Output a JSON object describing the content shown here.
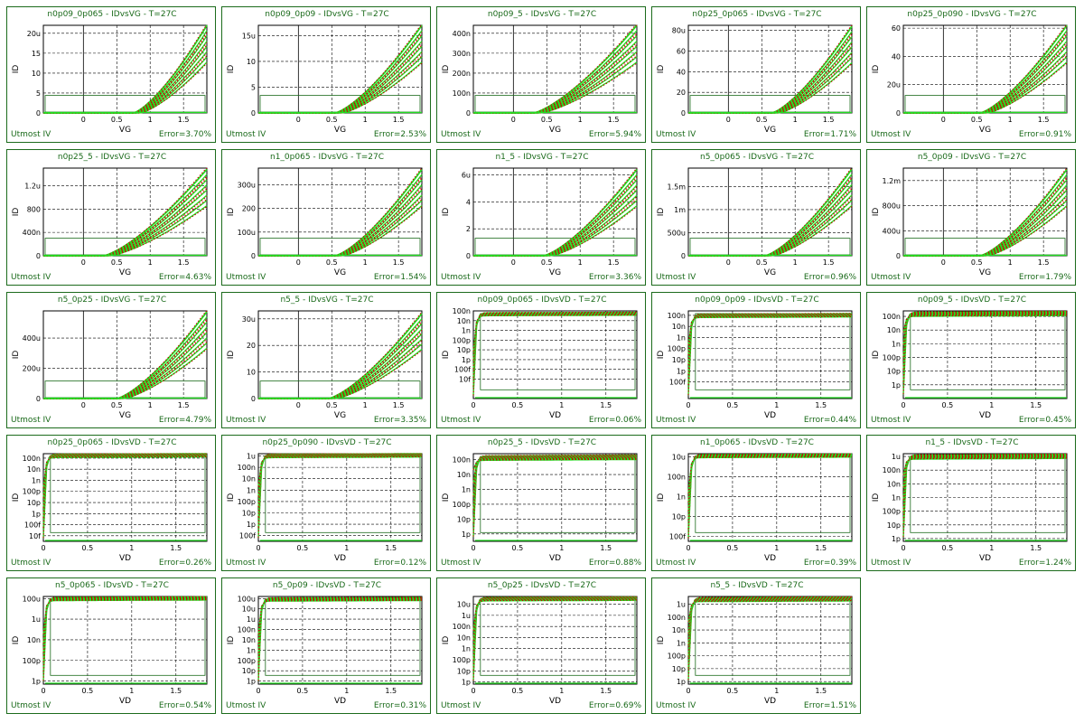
{
  "footer_label": "Utmost IV",
  "axes": {
    "vg_label": "VG",
    "vd_label": "VD",
    "id_label": "ID"
  },
  "colors": {
    "border": "#1c6b1c",
    "measured": "#22dd22",
    "simulated": "#cc0000",
    "title": "#1a6a1a"
  },
  "chart_data": [
    {
      "type": "line",
      "title": "n0p09_0p065 - IDvsVG - T=27C",
      "error": "Error=3.70%",
      "sweep": "VG",
      "xlim": [
        -0.6,
        1.85
      ],
      "ylim": [
        0,
        22
      ],
      "xticks": [
        "0",
        "0.5",
        "1",
        "1.5"
      ],
      "xtick_values": [
        0,
        0.5,
        1,
        1.5
      ],
      "yticks": [
        "0",
        "5",
        "10",
        "15",
        "20u"
      ],
      "ytick_values": [
        0,
        5,
        10,
        15,
        20
      ],
      "vth": 0.75,
      "ymax": 22,
      "curves": 8
    },
    {
      "type": "line",
      "title": "n0p09_0p09 - IDvsVG - T=27C",
      "error": "Error=2.53%",
      "sweep": "VG",
      "xlim": [
        -0.6,
        1.85
      ],
      "ylim": [
        0,
        17
      ],
      "xticks": [
        "0",
        "0.5",
        "1",
        "1.5"
      ],
      "xtick_values": [
        0,
        0.5,
        1,
        1.5
      ],
      "yticks": [
        "0",
        "5",
        "10",
        "15u"
      ],
      "ytick_values": [
        0,
        5,
        10,
        15
      ],
      "vth": 0.55,
      "ymax": 17,
      "curves": 8
    },
    {
      "type": "line",
      "title": "n0p09_5 - IDvsVG - T=27C",
      "error": "Error=5.94%",
      "sweep": "VG",
      "xlim": [
        -0.6,
        1.85
      ],
      "ylim": [
        0,
        440
      ],
      "xticks": [
        "0",
        "0.5",
        "1",
        "1.5"
      ],
      "xtick_values": [
        0,
        0.5,
        1,
        1.5
      ],
      "yticks": [
        "0",
        "100n",
        "200n",
        "300n",
        "400n"
      ],
      "ytick_values": [
        0,
        100,
        200,
        300,
        400
      ],
      "vth": 0.3,
      "ymax": 440,
      "curves": 8
    },
    {
      "type": "line",
      "title": "n0p25_0p065 - IDvsVG - T=27C",
      "error": "Error=1.71%",
      "sweep": "VG",
      "xlim": [
        -0.6,
        1.85
      ],
      "ylim": [
        0,
        85
      ],
      "xticks": [
        "0",
        "0.5",
        "1",
        "1.5"
      ],
      "xtick_values": [
        0,
        0.5,
        1,
        1.5
      ],
      "yticks": [
        "0",
        "20",
        "40",
        "60",
        "80u"
      ],
      "ytick_values": [
        0,
        20,
        40,
        60,
        80
      ],
      "vth": 0.65,
      "ymax": 84,
      "curves": 8
    },
    {
      "type": "line",
      "title": "n0p25_0p090 - IDvsVG - T=27C",
      "error": "Error=0.91%",
      "sweep": "VG",
      "xlim": [
        -0.6,
        1.85
      ],
      "ylim": [
        0,
        62
      ],
      "xticks": [
        "0",
        "0.5",
        "1",
        "1.5"
      ],
      "xtick_values": [
        0,
        0.5,
        1,
        1.5
      ],
      "yticks": [
        "0",
        "20u",
        "40",
        "60"
      ],
      "ytick_values": [
        0,
        20,
        40,
        60
      ],
      "vth": 0.55,
      "ymax": 62,
      "curves": 8
    },
    {
      "type": "line",
      "title": "n0p25_5 - IDvsVG - T=27C",
      "error": "Error=4.63%",
      "sweep": "VG",
      "xlim": [
        -0.6,
        1.85
      ],
      "ylim": [
        0,
        1500
      ],
      "xticks": [
        "0",
        "0.5",
        "1",
        "1.5"
      ],
      "xtick_values": [
        0,
        0.5,
        1,
        1.5
      ],
      "yticks": [
        "0",
        "400n",
        "800",
        "1.2u"
      ],
      "ytick_values": [
        0,
        400,
        800,
        1200
      ],
      "vth": 0.3,
      "ymax": 1480,
      "curves": 8
    },
    {
      "type": "line",
      "title": "n1_0p065 - IDvsVG - T=27C",
      "error": "Error=1.54%",
      "sweep": "VG",
      "xlim": [
        -0.6,
        1.85
      ],
      "ylim": [
        0,
        370
      ],
      "xticks": [
        "0",
        "0.5",
        "1",
        "1.5"
      ],
      "xtick_values": [
        0,
        0.5,
        1,
        1.5
      ],
      "yticks": [
        "0",
        "100u",
        "200",
        "300u"
      ],
      "ytick_values": [
        0,
        100,
        200,
        300
      ],
      "vth": 0.55,
      "ymax": 365,
      "curves": 8
    },
    {
      "type": "line",
      "title": "n1_5 - IDvsVG - T=27C",
      "error": "Error=3.36%",
      "sweep": "VG",
      "xlim": [
        -0.6,
        1.85
      ],
      "ylim": [
        0,
        6.5
      ],
      "xticks": [
        "0",
        "0.5",
        "1",
        "1.5"
      ],
      "xtick_values": [
        0,
        0.5,
        1,
        1.5
      ],
      "yticks": [
        "0",
        "2",
        "4",
        "6u"
      ],
      "ytick_values": [
        0,
        2,
        4,
        6
      ],
      "vth": 0.45,
      "ymax": 6.4,
      "curves": 8
    },
    {
      "type": "line",
      "title": "n5_0p065 - IDvsVG - T=27C",
      "error": "Error=0.96%",
      "sweep": "VG",
      "xlim": [
        -0.6,
        1.85
      ],
      "ylim": [
        0,
        1900
      ],
      "xticks": [
        "0",
        "0.5",
        "1",
        "1.5"
      ],
      "xtick_values": [
        0,
        0.5,
        1,
        1.5
      ],
      "yticks": [
        "0",
        "500u",
        "1m",
        "1.5m"
      ],
      "ytick_values": [
        0,
        500,
        1000,
        1500
      ],
      "vth": 0.55,
      "ymax": 1880,
      "curves": 8
    },
    {
      "type": "line",
      "title": "n5_0p09 - IDvsVG - T=27C",
      "error": "Error=1.79%",
      "sweep": "VG",
      "xlim": [
        -0.6,
        1.85
      ],
      "ylim": [
        0,
        1400
      ],
      "xticks": [
        "0",
        "0.5",
        "1",
        "1.5"
      ],
      "xtick_values": [
        0,
        0.5,
        1,
        1.5
      ],
      "yticks": [
        "0",
        "400u",
        "800u",
        "1.2m"
      ],
      "ytick_values": [
        0,
        400,
        800,
        1200
      ],
      "vth": 0.55,
      "ymax": 1380,
      "curves": 8
    },
    {
      "type": "line",
      "title": "n5_0p25 - IDvsVG - T=27C",
      "error": "Error=4.79%",
      "sweep": "VG",
      "xlim": [
        -0.6,
        1.85
      ],
      "ylim": [
        0,
        580
      ],
      "xticks": [
        "0",
        "0.5",
        "1",
        "1.5"
      ],
      "xtick_values": [
        0,
        0.5,
        1,
        1.5
      ],
      "yticks": [
        "0",
        "200u",
        "400u"
      ],
      "ytick_values": [
        0,
        200,
        400
      ],
      "vth": 0.5,
      "ymax": 575,
      "curves": 8
    },
    {
      "type": "line",
      "title": "n5_5 - IDvsVG - T=27C",
      "error": "Error=3.35%",
      "sweep": "VG",
      "xlim": [
        -0.6,
        1.85
      ],
      "ylim": [
        0,
        33
      ],
      "xticks": [
        "0",
        "0.5",
        "1",
        "1.5"
      ],
      "xtick_values": [
        0,
        0.5,
        1,
        1.5
      ],
      "yticks": [
        "0",
        "10",
        "20",
        "30u"
      ],
      "ytick_values": [
        0,
        10,
        20,
        30
      ],
      "vth": 0.45,
      "ymax": 32,
      "curves": 8
    },
    {
      "type": "line",
      "title": "n0p09_0p065 - IDvsVD - T=27C",
      "error": "Error=0.06%",
      "sweep": "VD",
      "xlim": [
        0,
        1.85
      ],
      "ylim": [
        -16,
        -7
      ],
      "xticks": [
        "0",
        "0.5",
        "1",
        "1.5"
      ],
      "xtick_values": [
        0,
        0.5,
        1,
        1.5
      ],
      "yticks": [
        "10f",
        "100f",
        "1p",
        "10p",
        "100p",
        "1n",
        "10n",
        "100n"
      ],
      "ytick_values": [
        -14,
        -13,
        -12,
        -11,
        -10,
        -9,
        -8,
        -7
      ],
      "sat": -7.2,
      "curves": 6
    },
    {
      "type": "line",
      "title": "n0p09_0p09 - IDvsVD - T=27C",
      "error": "Error=0.44%",
      "sweep": "VD",
      "xlim": [
        0,
        1.85
      ],
      "ylim": [
        -14.5,
        -6.6
      ],
      "xticks": [
        "0",
        "0.5",
        "1",
        "1.5"
      ],
      "xtick_values": [
        0,
        0.5,
        1,
        1.5
      ],
      "yticks": [
        "100f",
        "1p",
        "10p",
        "100p",
        "1n",
        "10n",
        "100n"
      ],
      "ytick_values": [
        -13,
        -12,
        -11,
        -10,
        -9,
        -8,
        -7
      ],
      "sat": -6.9,
      "curves": 6
    },
    {
      "type": "line",
      "title": "n0p09_5 - IDvsVD - T=27C",
      "error": "Error=0.45%",
      "sweep": "VD",
      "xlim": [
        0,
        1.85
      ],
      "ylim": [
        -13,
        -6.6
      ],
      "xticks": [
        "0",
        "0.5",
        "1",
        "1.5"
      ],
      "xtick_values": [
        0,
        0.5,
        1,
        1.5
      ],
      "yticks": [
        "1p",
        "10p",
        "100p",
        "1n",
        "10n",
        "100n"
      ],
      "ytick_values": [
        -12,
        -11,
        -10,
        -9,
        -8,
        -7
      ],
      "sat": -6.7,
      "curves": 6
    },
    {
      "type": "line",
      "title": "n0p25_0p065 - IDvsVD - T=27C",
      "error": "Error=0.26%",
      "sweep": "VD",
      "xlim": [
        0,
        1.85
      ],
      "ylim": [
        -14.5,
        -6.6
      ],
      "xticks": [
        "0",
        "0.5",
        "1",
        "1.5"
      ],
      "xtick_values": [
        0,
        0.5,
        1,
        1.5
      ],
      "yticks": [
        "10f",
        "100f",
        "1p",
        "10p",
        "100p",
        "1n",
        "10n",
        "100n"
      ],
      "ytick_values": [
        -14,
        -13,
        -12,
        -11,
        -10,
        -9,
        -8,
        -7
      ],
      "sat": -6.65,
      "curves": 6
    },
    {
      "type": "line",
      "title": "n0p25_0p090 - IDvsVD - T=27C",
      "error": "Error=0.12%",
      "sweep": "VD",
      "xlim": [
        0,
        1.85
      ],
      "ylim": [
        -13.5,
        -5.8
      ],
      "xticks": [
        "0",
        "0.5",
        "1",
        "1.5"
      ],
      "xtick_values": [
        0,
        0.5,
        1,
        1.5
      ],
      "yticks": [
        "100f",
        "1p",
        "10p",
        "100p",
        "1n",
        "10n",
        "100n",
        "1u"
      ],
      "ytick_values": [
        -13,
        -12,
        -11,
        -10,
        -9,
        -8,
        -7,
        -6
      ],
      "sat": -5.85,
      "curves": 6
    },
    {
      "type": "line",
      "title": "n0p25_5 - IDvsVD - T=27C",
      "error": "Error=0.88%",
      "sweep": "VD",
      "xlim": [
        0,
        1.85
      ],
      "ylim": [
        -12.5,
        -6.6
      ],
      "xticks": [
        "0",
        "0.5",
        "1",
        "1.5"
      ],
      "xtick_values": [
        0,
        0.5,
        1,
        1.5
      ],
      "yticks": [
        "1p",
        "10p",
        "100p",
        "1n",
        "10n",
        "100n"
      ],
      "ytick_values": [
        -12,
        -11,
        -10,
        -9,
        -8,
        -7
      ],
      "sat": -6.75,
      "curves": 6
    },
    {
      "type": "line",
      "title": "n1_0p065 - IDvsVD - T=27C",
      "error": "Error=0.39%",
      "sweep": "VD",
      "xlim": [
        0,
        1.85
      ],
      "ylim": [
        -13.5,
        -4.7
      ],
      "xticks": [
        "0",
        "0.5",
        "1",
        "1.5"
      ],
      "xtick_values": [
        0,
        0.5,
        1,
        1.5
      ],
      "yticks": [
        "100f",
        "10p",
        "1n",
        "100n",
        "10u"
      ],
      "ytick_values": [
        -13,
        -11,
        -9,
        -7,
        -5
      ],
      "sat": -4.8,
      "curves": 6
    },
    {
      "type": "line",
      "title": "n1_5 - IDvsVD - T=27C",
      "error": "Error=1.24%",
      "sweep": "VD",
      "xlim": [
        0,
        1.85
      ],
      "ylim": [
        -12.2,
        -5.8
      ],
      "xticks": [
        "0",
        "0.5",
        "1",
        "1.5"
      ],
      "xtick_values": [
        0,
        0.5,
        1,
        1.5
      ],
      "yticks": [
        "1p",
        "10p",
        "100p",
        "1n",
        "10n",
        "100n",
        "1u"
      ],
      "ytick_values": [
        -12,
        -11,
        -10,
        -9,
        -8,
        -7,
        -6
      ],
      "sat": -5.9,
      "curves": 6
    },
    {
      "type": "line",
      "title": "n5_0p065 - IDvsVD - T=27C",
      "error": "Error=0.54%",
      "sweep": "VD",
      "xlim": [
        0,
        1.85
      ],
      "ylim": [
        -12.3,
        -3.8
      ],
      "xticks": [
        "0",
        "0.5",
        "1",
        "1.5"
      ],
      "xtick_values": [
        0,
        0.5,
        1,
        1.5
      ],
      "yticks": [
        "1p",
        "100p",
        "10n",
        "1u",
        "100u"
      ],
      "ytick_values": [
        -12,
        -10,
        -8,
        -6,
        -4
      ],
      "sat": -3.9,
      "curves": 6
    },
    {
      "type": "line",
      "title": "n5_0p09 - IDvsVD - T=27C",
      "error": "Error=0.31%",
      "sweep": "VD",
      "xlim": [
        0,
        1.85
      ],
      "ylim": [
        -12.3,
        -3.8
      ],
      "xticks": [
        "0",
        "0.5",
        "1",
        "1.5"
      ],
      "xtick_values": [
        0,
        0.5,
        1,
        1.5
      ],
      "yticks": [
        "1p",
        "10p",
        "100p",
        "1n",
        "10n",
        "100n",
        "1u",
        "10u",
        "100u"
      ],
      "ytick_values": [
        -12,
        -11,
        -10,
        -9,
        -8,
        -7,
        -6,
        -5,
        -4
      ],
      "sat": -3.95,
      "curves": 6
    },
    {
      "type": "line",
      "title": "n5_0p25 - IDvsVD - T=27C",
      "error": "Error=0.69%",
      "sweep": "VD",
      "xlim": [
        0,
        1.85
      ],
      "ylim": [
        -12.2,
        -4.3
      ],
      "xticks": [
        "0",
        "0.5",
        "1",
        "1.5"
      ],
      "xtick_values": [
        0,
        0.5,
        1,
        1.5
      ],
      "yticks": [
        "1p",
        "10p",
        "100p",
        "1n",
        "10n",
        "100n",
        "1u",
        "10u"
      ],
      "ytick_values": [
        -12,
        -11,
        -10,
        -9,
        -8,
        -7,
        -6,
        -5
      ],
      "sat": -4.4,
      "curves": 6
    },
    {
      "type": "line",
      "title": "n5_5 - IDvsVD - T=27C",
      "error": "Error=1.51%",
      "sweep": "VD",
      "xlim": [
        0,
        1.85
      ],
      "ylim": [
        -12.2,
        -5.4
      ],
      "xticks": [
        "0",
        "0.5",
        "1",
        "1.5"
      ],
      "xtick_values": [
        0,
        0.5,
        1,
        1.5
      ],
      "yticks": [
        "1p",
        "10p",
        "100p",
        "1n",
        "10n",
        "100n",
        "1u"
      ],
      "ytick_values": [
        -12,
        -11,
        -10,
        -9,
        -8,
        -7,
        -6
      ],
      "sat": -5.5,
      "curves": 6
    }
  ]
}
